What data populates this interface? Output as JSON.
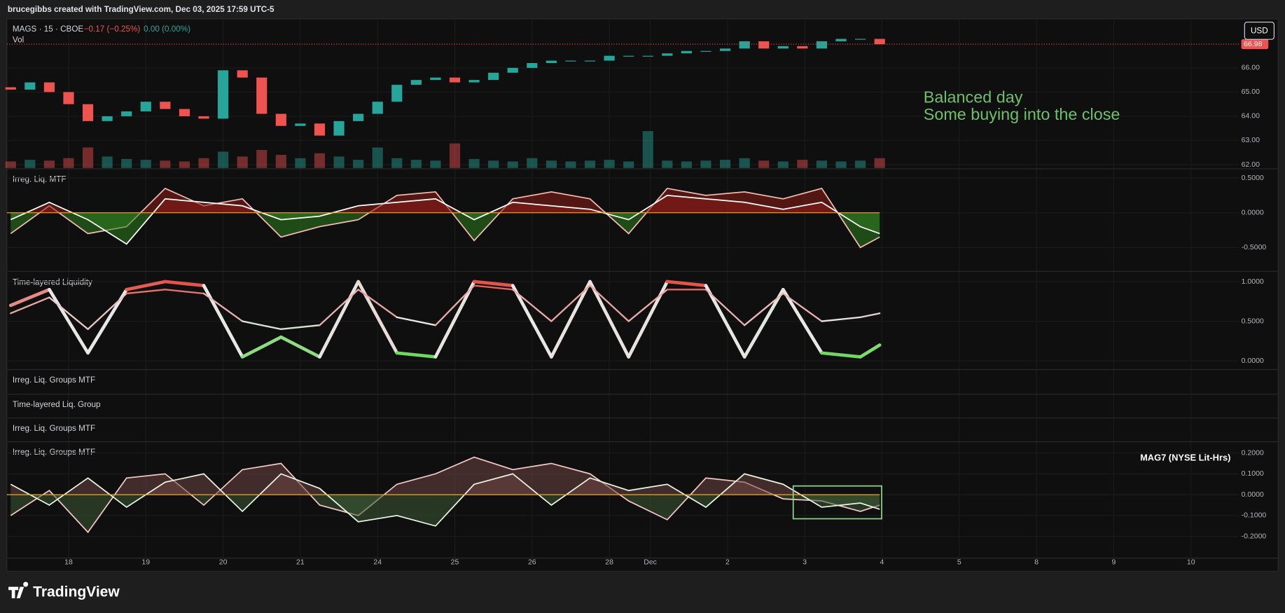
{
  "header": {
    "title": "brucegibbs created with TradingView.com, Dec 03, 2025 17:59 UTC-5"
  },
  "footer": {
    "brand": "TradingView"
  },
  "chart_data": [
    {
      "type": "candlestick",
      "symbol": "MAGS · 15 · CBOE",
      "change": "−0.17 (−0.25%)",
      "change_after": "0.00 (0.00%)",
      "volume_label": "Vol",
      "currency": "USD",
      "last_price": 66.98,
      "up_color": "#26a69a",
      "down_color": "#ef5350",
      "annotation_color": "#6fbf6b",
      "annotations": [
        "Balanced day",
        "Some buying into the close"
      ],
      "x": [
        -0.75,
        -0.5,
        -0.25,
        0,
        0.25,
        0.5,
        0.75,
        1,
        1.25,
        1.5,
        1.75,
        2,
        2.25,
        2.5,
        2.75,
        3,
        3.25,
        3.5,
        3.75,
        4,
        4.25,
        4.5,
        4.75,
        5,
        5.25,
        5.5,
        5.75,
        6,
        6.25,
        6.5,
        6.75,
        7,
        7.25,
        7.5,
        7.75,
        8,
        8.25,
        8.5,
        8.75,
        9,
        9.25,
        9.5,
        9.75,
        10,
        10.25,
        10.5
      ],
      "open": [
        65.2,
        65.1,
        65.4,
        65.0,
        64.5,
        63.8,
        64.0,
        64.2,
        64.6,
        64.3,
        64.0,
        63.9,
        65.9,
        65.6,
        64.1,
        63.6,
        63.7,
        63.2,
        63.8,
        64.1,
        64.6,
        65.3,
        65.5,
        65.6,
        65.4,
        65.5,
        65.8,
        66.0,
        66.2,
        66.3,
        66.3,
        66.3,
        66.5,
        66.5,
        66.5,
        66.6,
        66.7,
        66.7,
        66.8,
        67.1,
        66.8,
        66.9,
        66.8,
        67.1,
        67.2,
        67.2
      ],
      "close": [
        65.1,
        65.4,
        65.0,
        64.5,
        63.8,
        64.0,
        64.2,
        64.6,
        64.3,
        64.0,
        63.9,
        65.9,
        65.6,
        64.1,
        63.6,
        63.7,
        63.2,
        63.8,
        64.1,
        64.6,
        65.3,
        65.5,
        65.6,
        65.4,
        65.5,
        65.8,
        66.0,
        66.2,
        66.3,
        66.3,
        66.3,
        66.5,
        66.5,
        66.5,
        66.6,
        66.7,
        66.7,
        66.8,
        67.1,
        66.8,
        66.9,
        66.8,
        67.1,
        67.2,
        67.2,
        66.98
      ],
      "volume": [
        8,
        10,
        9,
        12,
        25,
        14,
        11,
        10,
        9,
        8,
        12,
        20,
        14,
        22,
        16,
        12,
        18,
        14,
        10,
        25,
        12,
        10,
        9,
        30,
        11,
        9,
        8,
        12,
        9,
        8,
        9,
        10,
        8,
        45,
        9,
        8,
        9,
        10,
        12,
        9,
        8,
        10,
        9,
        8,
        9,
        12
      ],
      "ylim": [
        61.86,
        67.96
      ],
      "yticks": [
        {
          "value": 62,
          "label": "62.00"
        },
        {
          "value": 63,
          "label": "63.00"
        },
        {
          "value": 64,
          "label": "64.00"
        },
        {
          "value": 65,
          "label": "65.00"
        },
        {
          "value": 66,
          "label": "66.00"
        }
      ]
    },
    {
      "type": "area",
      "title": "Irreg. Liq. MTF",
      "fill_up": "#8b1e17",
      "fill_down": "#2e7d1f",
      "zero_color": "#f5a623",
      "x": [
        -0.75,
        -0.25,
        0.25,
        0.75,
        1.25,
        1.75,
        2.25,
        2.75,
        3.25,
        3.75,
        4.25,
        4.75,
        5.25,
        5.75,
        6.25,
        6.75,
        7.25,
        7.75,
        8.25,
        8.75,
        9.25,
        9.75,
        10.25,
        10.5
      ],
      "series": [
        {
          "color": "#f0b8b0",
          "values": [
            -0.3,
            0.1,
            -0.3,
            -0.2,
            0.35,
            0.1,
            0.2,
            -0.35,
            -0.2,
            -0.1,
            0.25,
            0.3,
            -0.4,
            0.2,
            0.3,
            0.2,
            -0.3,
            0.35,
            0.25,
            0.3,
            0.2,
            0.35,
            -0.5,
            -0.35
          ]
        },
        {
          "color": "#ffffff",
          "values": [
            -0.1,
            0.15,
            -0.1,
            -0.45,
            0.2,
            0.15,
            0.1,
            -0.1,
            -0.05,
            0.1,
            0.15,
            0.2,
            -0.1,
            0.15,
            0.1,
            0.05,
            -0.1,
            0.25,
            0.2,
            0.15,
            0.05,
            0.15,
            -0.2,
            -0.3
          ]
        }
      ],
      "ylim": [
        -0.83,
        0.62
      ],
      "yticks": [
        {
          "value": -0.5,
          "label": "-0.5000"
        },
        {
          "value": 0,
          "label": "0.0000"
        },
        {
          "value": 0.5,
          "label": "0.5000"
        }
      ]
    },
    {
      "type": "gradient-line",
      "title": "Time-layered Liquidity",
      "low_color": "#3fd22a",
      "mid_color": "#e8e8e8",
      "high_color": "#e2291c",
      "x": [
        -0.75,
        -0.25,
        0.25,
        0.75,
        1.25,
        1.75,
        2.25,
        2.75,
        3.25,
        3.75,
        4.25,
        4.75,
        5.25,
        5.75,
        6.25,
        6.75,
        7.25,
        7.75,
        8.25,
        8.75,
        9.25,
        9.75,
        10.25,
        10.5
      ],
      "series": [
        {
          "width": 4,
          "values": [
            0.7,
            0.9,
            0.1,
            0.9,
            1.0,
            0.95,
            0.05,
            0.3,
            0.05,
            1.0,
            0.1,
            0.05,
            1.0,
            0.95,
            0.05,
            1.0,
            0.05,
            1.0,
            0.95,
            0.05,
            0.9,
            0.1,
            0.05,
            0.2
          ]
        },
        {
          "width": 2,
          "values": [
            0.6,
            0.8,
            0.4,
            0.85,
            0.9,
            0.85,
            0.5,
            0.4,
            0.45,
            0.9,
            0.55,
            0.45,
            0.95,
            0.9,
            0.5,
            0.95,
            0.5,
            0.9,
            0.9,
            0.45,
            0.85,
            0.5,
            0.55,
            0.6
          ]
        }
      ],
      "ylim": [
        -0.1,
        1.11
      ],
      "yticks": [
        {
          "value": 0,
          "label": "0.0000"
        },
        {
          "value": 0.5,
          "label": "0.5000"
        },
        {
          "value": 1,
          "label": "1.0000"
        }
      ]
    },
    {
      "type": "empty",
      "title": "Irreg. Liq. Groups MTF"
    },
    {
      "type": "empty",
      "title": "Time-layered Liq. Group"
    },
    {
      "type": "empty",
      "title": "Irreg. Liq. Groups MTF"
    },
    {
      "type": "area",
      "title": "Irreg. Liq. Groups MTF",
      "annotation": "MAG7 (NYSE Lit-Hrs)",
      "fill_up": "#6e4444",
      "fill_down": "#3c5a36",
      "zero_color": "#f5a623",
      "x": [
        -0.75,
        -0.25,
        0.25,
        0.75,
        1.25,
        1.75,
        2.25,
        2.75,
        3.25,
        3.75,
        4.25,
        4.75,
        5.25,
        5.75,
        6.25,
        6.75,
        7.25,
        7.75,
        8.25,
        8.75,
        9.25,
        9.75,
        10.25,
        10.5
      ],
      "series": [
        {
          "color": "#f3c6c6",
          "values": [
            -0.1,
            0.02,
            -0.18,
            0.08,
            0.1,
            -0.05,
            0.12,
            0.15,
            -0.05,
            -0.1,
            0.05,
            0.1,
            0.18,
            0.12,
            0.15,
            0.1,
            -0.03,
            -0.12,
            0.08,
            0.06,
            -0.02,
            -0.03,
            -0.08,
            -0.05
          ]
        },
        {
          "color": "#e8f3e4",
          "values": [
            0.05,
            -0.05,
            0.08,
            -0.06,
            0.06,
            0.1,
            -0.08,
            0.1,
            0.03,
            -0.13,
            -0.1,
            -0.15,
            0.05,
            0.1,
            -0.05,
            0.08,
            0.02,
            0.05,
            -0.06,
            0.1,
            0.05,
            -0.06,
            -0.04,
            -0.07
          ]
        }
      ],
      "ylim": [
        -0.3,
        0.25
      ],
      "yticks": [
        {
          "value": -0.2,
          "label": "-0.2000"
        },
        {
          "value": -0.1,
          "label": "-0.1000"
        },
        {
          "value": 0,
          "label": "0.0000"
        },
        {
          "value": 0.1,
          "label": "0.1000"
        },
        {
          "value": 0.2,
          "label": "0.2000"
        }
      ],
      "xlim": [
        -0.8,
        15.15
      ],
      "xticks": [
        {
          "value": 0,
          "label": "18"
        },
        {
          "value": 1,
          "label": "19"
        },
        {
          "value": 2,
          "label": "20"
        },
        {
          "value": 3,
          "label": "21"
        },
        {
          "value": 4,
          "label": "24"
        },
        {
          "value": 5,
          "label": "25"
        },
        {
          "value": 6,
          "label": "26"
        },
        {
          "value": 7,
          "label": "28"
        },
        {
          "value": 7.53,
          "label": "Dec"
        },
        {
          "value": 8.53,
          "label": "2"
        },
        {
          "value": 9.53,
          "label": "3"
        },
        {
          "value": 10.53,
          "label": "4"
        },
        {
          "value": 11.53,
          "label": "5"
        },
        {
          "value": 12.53,
          "label": "8"
        },
        {
          "value": 13.53,
          "label": "9"
        },
        {
          "value": 14.53,
          "label": "10"
        }
      ]
    }
  ]
}
